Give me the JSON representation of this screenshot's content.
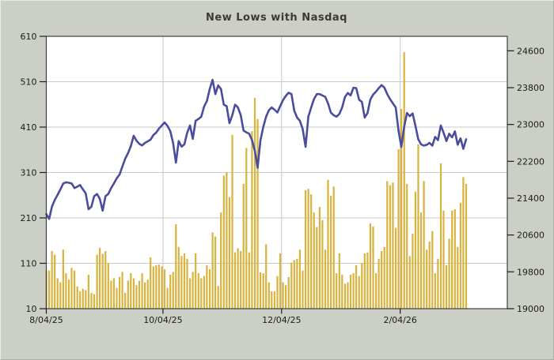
{
  "title": "New Lows with Nasdaq",
  "colors": {
    "background": "#cbcfc6",
    "plot_background": "#ffffff",
    "gridline": "#c9c9c9",
    "plot_border": "#3f3f3f",
    "tick": "#1c1c1c",
    "bar_series": "#d8b33e",
    "line_series": "#4a4d9c",
    "text": "#1c1c1c"
  },
  "chart_data": {
    "type": "combo",
    "title": "New Lows with Nasdaq",
    "grid": "on",
    "legend": "none",
    "x_axis": {
      "tick_labels": [
        "8/04/25",
        "10/04/25",
        "12/04/25",
        "2/04/26"
      ],
      "tick_positions_idx": [
        0,
        41.4,
        83.5,
        125.6
      ],
      "num_points": 150
    },
    "left_axis": {
      "series_name": "New Lows",
      "ticks": [
        10,
        110,
        210,
        310,
        410,
        510,
        610
      ],
      "range": [
        10,
        610
      ]
    },
    "right_axis": {
      "series_name": "Nasdaq",
      "ticks": [
        19000,
        19800,
        20600,
        21400,
        22200,
        23000,
        23800,
        24600
      ],
      "range": [
        19000,
        24915
      ]
    },
    "series": [
      {
        "name": "New Lows",
        "type": "bar",
        "axis": "left",
        "color": "#d8b33e",
        "values": [
          95,
          94,
          137,
          129,
          77,
          68,
          140,
          88,
          74,
          100,
          94,
          59,
          48,
          54,
          51,
          85,
          45,
          42,
          129,
          144,
          131,
          137,
          111,
          72,
          77,
          56,
          80,
          91,
          45,
          72,
          88,
          77,
          62,
          71,
          88,
          68,
          74,
          123,
          103,
          106,
          107,
          103,
          97,
          56,
          85,
          91,
          196,
          146,
          126,
          132,
          120,
          77,
          91,
          132,
          88,
          77,
          82,
          106,
          97,
          178,
          169,
          60,
          222,
          303,
          311,
          256,
          393,
          134,
          143,
          137,
          285,
          364,
          134,
          401,
          474,
          428,
          90,
          88,
          152,
          68,
          48,
          48,
          82,
          132,
          68,
          62,
          80,
          111,
          117,
          120,
          140,
          94,
          271,
          274,
          262,
          222,
          190,
          234,
          205,
          140,
          294,
          259,
          279,
          88,
          132,
          85,
          65,
          68,
          85,
          88,
          106,
          82,
          111,
          132,
          134,
          198,
          191,
          88,
          120,
          137,
          146,
          291,
          282,
          288,
          188,
          361,
          450,
          575,
          285,
          126,
          175,
          268,
          372,
          222,
          291,
          140,
          158,
          181,
          88,
          120,
          330,
          226,
          106,
          164,
          226,
          229,
          146,
          243,
          300,
          285
        ]
      },
      {
        "name": "Nasdaq",
        "type": "line",
        "axis": "right",
        "color": "#4a4d9c",
        "values": [
          21054,
          20950,
          21215,
          21360,
          21470,
          21590,
          21720,
          21745,
          21735,
          21720,
          21620,
          21650,
          21685,
          21590,
          21505,
          21160,
          21215,
          21445,
          21490,
          21385,
          21130,
          21445,
          21490,
          21620,
          21720,
          21830,
          21915,
          22085,
          22257,
          22380,
          22530,
          22754,
          22650,
          22580,
          22545,
          22600,
          22635,
          22670,
          22770,
          22825,
          22910,
          22980,
          23045,
          22970,
          22855,
          22600,
          22170,
          22640,
          22520,
          22570,
          22820,
          22980,
          22690,
          23080,
          23120,
          23170,
          23390,
          23510,
          23770,
          23970,
          23660,
          23850,
          23770,
          23430,
          23400,
          23030,
          23200,
          23430,
          23370,
          23200,
          22870,
          22830,
          22800,
          22660,
          22430,
          22060,
          22660,
          22950,
          23170,
          23310,
          23370,
          23320,
          23260,
          23400,
          23530,
          23620,
          23690,
          23660,
          23300,
          23150,
          23080,
          22900,
          22514,
          23170,
          23370,
          23550,
          23660,
          23660,
          23630,
          23600,
          23457,
          23257,
          23200,
          23170,
          23230,
          23370,
          23600,
          23686,
          23630,
          23800,
          23790,
          23540,
          23490,
          23150,
          23250,
          23540,
          23650,
          23714,
          23790,
          23856,
          23800,
          23660,
          23550,
          23460,
          23370,
          22860,
          22514,
          22950,
          23250,
          23180,
          23240,
          22970,
          22680,
          22570,
          22540,
          22560,
          22600,
          22540,
          22730,
          22660,
          22980,
          22820,
          22640,
          22800,
          22720,
          22850,
          22560,
          22700,
          22470,
          22680
        ]
      }
    ]
  }
}
